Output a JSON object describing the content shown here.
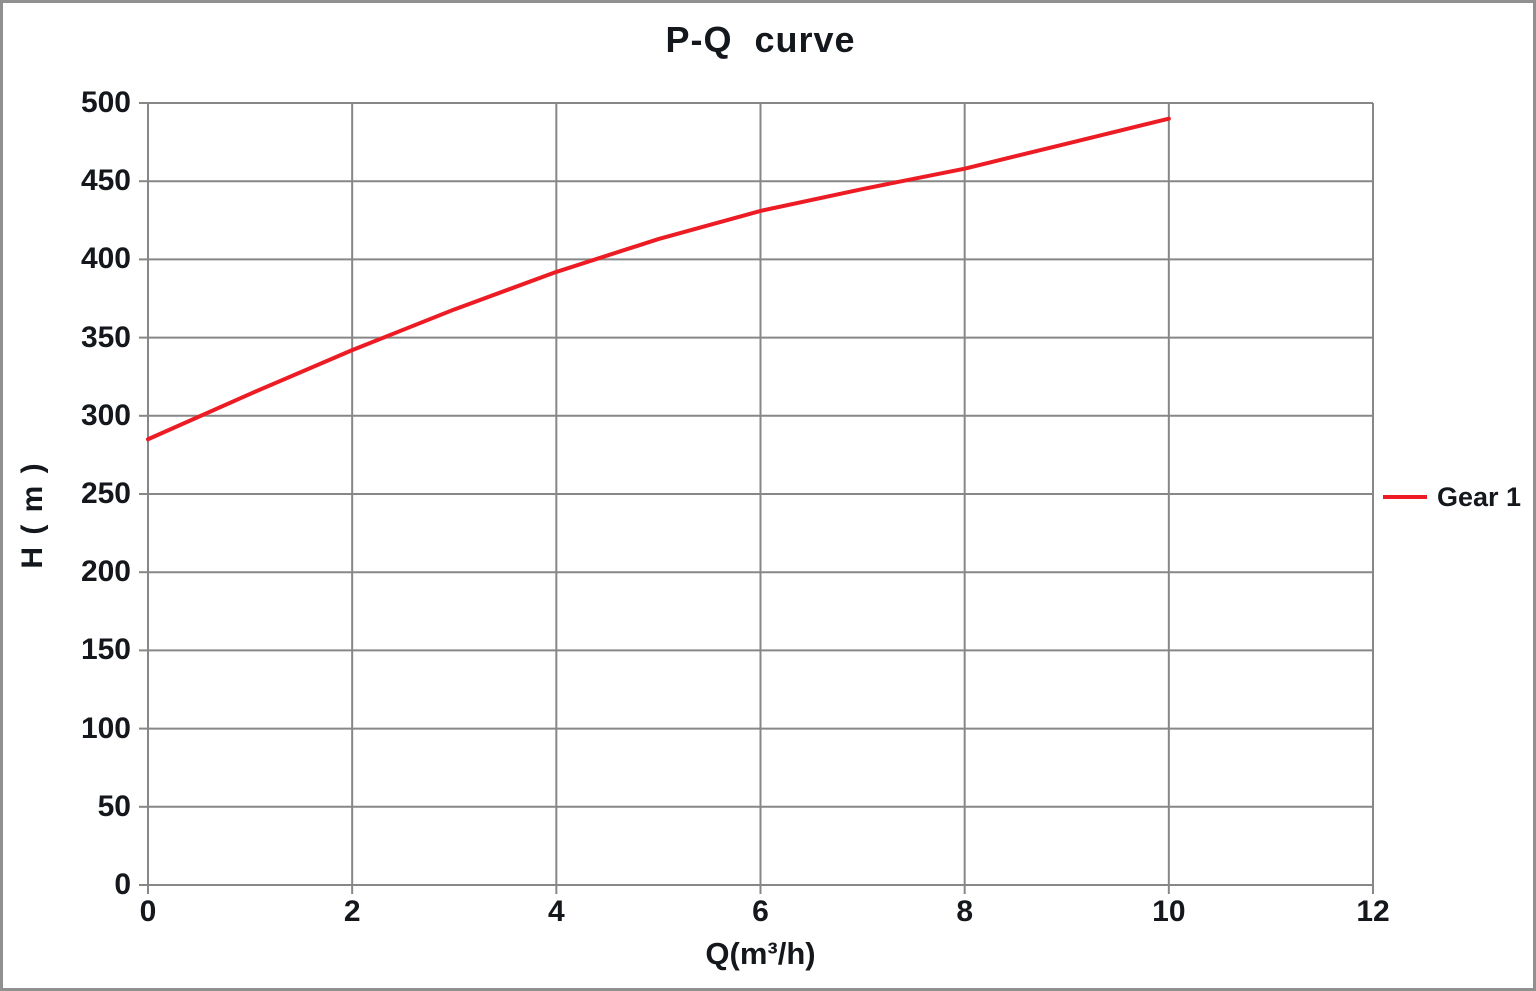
{
  "chart_data": {
    "type": "line",
    "title": "P-Q  curve",
    "xlabel": "Q(m³/h)",
    "ylabel": "H ( m )",
    "xlim": [
      0,
      12
    ],
    "ylim": [
      0,
      500
    ],
    "x_ticks": [
      0,
      2,
      4,
      6,
      8,
      10,
      12
    ],
    "y_ticks": [
      0,
      50,
      100,
      150,
      200,
      250,
      300,
      350,
      400,
      450,
      500
    ],
    "grid": true,
    "legend_position": "right-middle",
    "x": [
      0,
      1,
      2,
      3,
      4,
      5,
      6,
      7,
      8,
      9,
      10
    ],
    "series": [
      {
        "name": "Gear 1",
        "color": "#ed1c24",
        "values": [
          285,
          314,
          342,
          368,
          392,
          413,
          431,
          445,
          458,
          474,
          490
        ]
      }
    ],
    "colors": {
      "grid": "#878787",
      "text": "#14171c",
      "background": "#ffffff",
      "frame_border": "#909090"
    }
  }
}
